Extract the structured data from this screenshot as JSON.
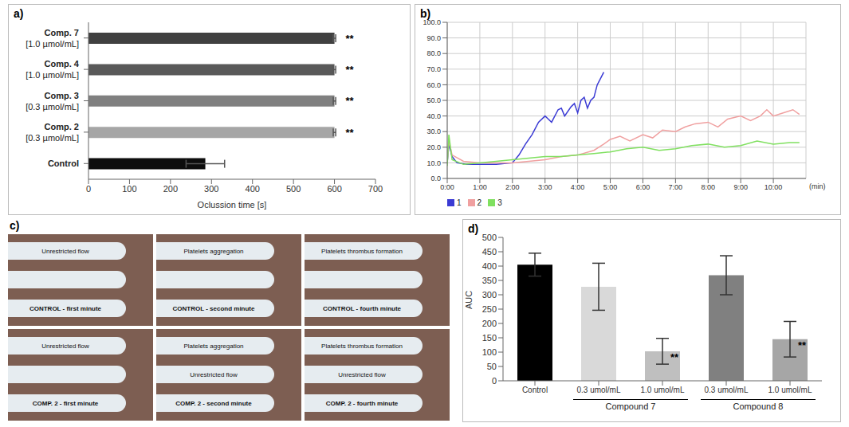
{
  "chart_data": [
    {
      "panel": "a)",
      "type": "bar",
      "orientation": "horizontal",
      "categories": [
        "Comp. 7 [1.0 µmol/mL]",
        "Comp. 4 [1.0 µmol/mL]",
        "Comp. 3 [0.3 µmol/mL]",
        "Comp. 2 [0.3 µmol/mL]",
        "Control"
      ],
      "values": [
        600,
        600,
        600,
        600,
        285
      ],
      "errors": [
        3,
        3,
        3,
        3,
        47
      ],
      "annotations": [
        "**",
        "**",
        "**",
        "**",
        null
      ],
      "colors": [
        "#404040",
        "#595959",
        "#808080",
        "#a6a6a6",
        "#0d0d0d"
      ],
      "xlim": [
        0,
        700
      ],
      "xticks": [
        0,
        100,
        200,
        300,
        400,
        500,
        600,
        700
      ],
      "x_label": "Oclussion time [s]",
      "grid": false
    },
    {
      "panel": "b)",
      "type": "line",
      "series": [
        {
          "name": "1",
          "color": "#3b3bd4",
          "x": [
            0,
            0.05,
            0.15,
            0.3,
            0.6,
            1.0,
            1.5,
            2.0,
            2.2,
            2.4,
            2.6,
            2.8,
            3.0,
            3.1,
            3.2,
            3.4,
            3.5,
            3.6,
            3.8,
            3.9,
            4.0,
            4.1,
            4.2,
            4.3,
            4.4,
            4.5,
            4.6,
            4.7,
            4.8
          ],
          "values": [
            10,
            22,
            14,
            10,
            9,
            9,
            9,
            10,
            15,
            22,
            28,
            36,
            40,
            38,
            36,
            44,
            45,
            40,
            46,
            48,
            42,
            50,
            52,
            45,
            50,
            52,
            60,
            64,
            68
          ]
        },
        {
          "name": "2",
          "color": "#f0a0a0",
          "x": [
            0,
            0.05,
            0.15,
            0.5,
            1,
            1.5,
            2,
            2.5,
            3,
            3.5,
            4,
            4.5,
            4.8,
            5,
            5.3,
            5.6,
            6,
            6.3,
            6.6,
            7,
            7.3,
            7.6,
            8,
            8.3,
            8.6,
            9,
            9.3,
            9.6,
            9.8,
            10,
            10.3,
            10.6,
            10.8
          ],
          "values": [
            10,
            24,
            15,
            11,
            10,
            10,
            10,
            11,
            12,
            14,
            15,
            18,
            22,
            25,
            27,
            24,
            28,
            26,
            31,
            30,
            33,
            35,
            36,
            33,
            38,
            40,
            37,
            40,
            44,
            40,
            42,
            44,
            41
          ]
        },
        {
          "name": "3",
          "color": "#80e060",
          "x": [
            0,
            0.05,
            0.15,
            0.5,
            1,
            1.5,
            2,
            2.5,
            3,
            3.5,
            4,
            4.5,
            5,
            5.5,
            6,
            6.5,
            7,
            7.5,
            8,
            8.5,
            9,
            9.5,
            10,
            10.5,
            10.8
          ],
          "values": [
            8,
            28,
            12,
            9,
            10,
            11,
            12,
            13,
            14,
            14,
            15,
            16,
            17,
            19,
            20,
            18,
            19,
            21,
            22,
            20,
            21,
            24,
            22,
            23,
            23
          ]
        }
      ],
      "xlim": [
        0,
        11
      ],
      "xticks": [
        {
          "value": 0,
          "label": "0:00"
        },
        {
          "value": 1,
          "label": "1:00"
        },
        {
          "value": 2,
          "label": "2:00"
        },
        {
          "value": 3,
          "label": "3:00"
        },
        {
          "value": 4,
          "label": "4:00"
        },
        {
          "value": 5,
          "label": "5:00"
        },
        {
          "value": 6,
          "label": "6:00"
        },
        {
          "value": 7,
          "label": "7:00"
        },
        {
          "value": 8,
          "label": "8:00"
        },
        {
          "value": 9,
          "label": "9:00"
        },
        {
          "value": 10,
          "label": "10:00"
        }
      ],
      "x_label": "(min)",
      "ylim": [
        0,
        100
      ],
      "yticks": [
        {
          "value": 0,
          "label": "0.0"
        },
        {
          "value": 10,
          "label": "10.0"
        },
        {
          "value": 20,
          "label": "20.0"
        },
        {
          "value": 30,
          "label": "30.0"
        },
        {
          "value": 40,
          "label": "40.0"
        },
        {
          "value": 50,
          "label": "50.0"
        },
        {
          "value": 60,
          "label": "60.0"
        },
        {
          "value": 70,
          "label": "70.0"
        },
        {
          "value": 80,
          "label": "80.0"
        },
        {
          "value": 90,
          "label": "90.0"
        },
        {
          "value": 100,
          "label": "100.0"
        }
      ],
      "grid": true,
      "legend": "bottom"
    },
    {
      "panel": "d)",
      "type": "bar",
      "categories": [
        "Control",
        "0.3 umol/mL",
        "1.0 umol/mL",
        "0.3 umol/mL",
        "1.0 umol/mL"
      ],
      "groups": [
        null,
        "Compound 7",
        "Compound 7",
        "Compound 8",
        "Compound 8"
      ],
      "values": [
        405,
        328,
        103,
        368,
        145
      ],
      "errors": [
        40,
        82,
        45,
        68,
        62
      ],
      "annotations": [
        null,
        null,
        "**",
        null,
        "**"
      ],
      "colors": [
        "#000000",
        "#d9d9d9",
        "#bfbfbf",
        "#808080",
        "#a6a6a6"
      ],
      "ylim": [
        0,
        500
      ],
      "yticks": [
        0,
        50,
        100,
        150,
        200,
        250,
        300,
        350,
        400,
        450,
        500
      ],
      "y_label": "AUC",
      "grid": false
    }
  ],
  "images": {
    "panel": "c)",
    "tiles": [
      [
        {
          "caption": "CONTROL - first minute",
          "labels": [
            "Unrestricted flow"
          ]
        },
        {
          "caption": "CONTROL - second minute",
          "labels": [
            "Platelets aggregation"
          ]
        },
        {
          "caption": "CONTROL - fourth minute",
          "labels": [
            "Platelets thrombus formation"
          ]
        }
      ],
      [
        {
          "caption": "COMP. 2 - first minute",
          "labels": [
            "Unrestricted flow"
          ]
        },
        {
          "caption": "COMP. 2 - second minute",
          "labels": [
            "Platelets aggregation",
            "Unrestricted flow"
          ]
        },
        {
          "caption": "COMP. 2 - fourth minute",
          "labels": [
            "Platelets thrombus formation",
            "Unrestricted flow"
          ]
        }
      ]
    ]
  }
}
